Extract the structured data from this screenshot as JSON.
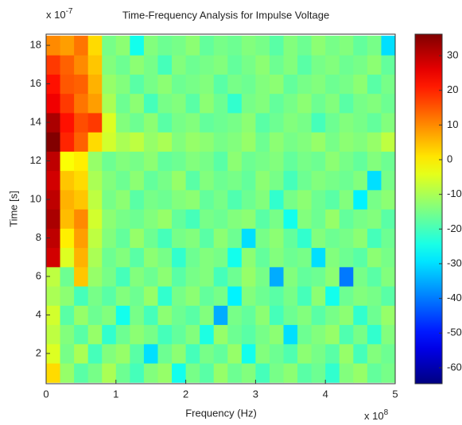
{
  "chart_data": {
    "type": "heatmap",
    "title": "Time-Frequency Analysis for Impulse Voltage",
    "xlabel": "Frequency (Hz)",
    "ylabel": "Time [s]",
    "x_multiplier": {
      "base": "x 10",
      "exponent": "8"
    },
    "y_multiplier": {
      "base": "x 10",
      "exponent": "-7"
    },
    "x": [
      0.1,
      0.3,
      0.5,
      0.7,
      0.9,
      1.1,
      1.3,
      1.5,
      1.7,
      1.9,
      2.1,
      2.3,
      2.5,
      2.7,
      2.9,
      3.1,
      3.3,
      3.5,
      3.7,
      3.9,
      4.1,
      4.3,
      4.5,
      4.7,
      4.9
    ],
    "y": [
      1,
      2,
      3,
      4,
      5,
      6,
      7,
      8,
      9,
      10,
      11,
      12,
      13,
      14,
      15,
      16,
      17,
      18
    ],
    "z": [
      [
        2,
        -12,
        -18,
        -15,
        -10,
        -16,
        -20,
        -14,
        -12,
        -25,
        -15,
        -18,
        -12,
        -16,
        -14,
        -20,
        -15,
        -13,
        -18,
        -16,
        -22,
        -14,
        -12,
        -17,
        -15
      ],
      [
        -5,
        -15,
        -10,
        -20,
        -14,
        -12,
        -18,
        -30,
        -16,
        -13,
        -20,
        -15,
        -17,
        -12,
        -25,
        -14,
        -16,
        -19,
        -13,
        -15,
        -18,
        -12,
        -20,
        -14,
        -16
      ],
      [
        -8,
        -14,
        -18,
        -12,
        -22,
        -16,
        -13,
        -15,
        -20,
        -17,
        -14,
        -24,
        -12,
        -16,
        -18,
        -15,
        -13,
        -30,
        -16,
        -14,
        -12,
        -19,
        -15,
        -22,
        -14
      ],
      [
        -6,
        -18,
        -12,
        -16,
        -14,
        -25,
        -15,
        -20,
        -13,
        -16,
        -18,
        -14,
        -35,
        -15,
        -17,
        -13,
        -20,
        -16,
        -14,
        -18,
        -15,
        -13,
        -22,
        -16,
        -12
      ],
      [
        -10,
        -13,
        -20,
        -15,
        -18,
        -14,
        -16,
        -12,
        -22,
        -15,
        -13,
        -17,
        -15,
        -28,
        -14,
        -16,
        -18,
        -15,
        -20,
        -13,
        -25,
        -16,
        -14,
        -15,
        -18
      ],
      [
        -8,
        -16,
        4,
        -12,
        -15,
        -20,
        -14,
        -16,
        -13,
        -18,
        -15,
        -14,
        -20,
        -16,
        -12,
        -15,
        -35,
        -14,
        -17,
        -16,
        -13,
        -40,
        -15,
        -18,
        -14
      ],
      [
        28,
        -5,
        6,
        -10,
        -16,
        -14,
        -18,
        -13,
        -15,
        -22,
        -16,
        -14,
        -15,
        -25,
        -13,
        -17,
        -14,
        -16,
        -15,
        -30,
        -14,
        -16,
        -18,
        -13,
        -15
      ],
      [
        30,
        0,
        8,
        -8,
        -14,
        -17,
        -12,
        -16,
        -20,
        -15,
        -14,
        -18,
        -13,
        -16,
        -30,
        -15,
        -13,
        -17,
        -22,
        -14,
        -16,
        -15,
        -13,
        -20,
        -16
      ],
      [
        32,
        5,
        10,
        -6,
        -13,
        -15,
        -16,
        -14,
        -12,
        -17,
        -20,
        -15,
        -16,
        -14,
        -13,
        -18,
        -15,
        -25,
        -14,
        -16,
        -12,
        -17,
        -15,
        -14,
        -18
      ],
      [
        30,
        6,
        4,
        -8,
        -15,
        -13,
        -18,
        -15,
        -16,
        -14,
        -13,
        -17,
        -15,
        -19,
        -16,
        -14,
        -22,
        -15,
        -13,
        -16,
        -18,
        -14,
        -28,
        -15,
        -13
      ],
      [
        28,
        4,
        2,
        -10,
        -14,
        -16,
        -13,
        -17,
        -15,
        -12,
        -18,
        -14,
        -16,
        -15,
        -17,
        -13,
        -15,
        -20,
        -16,
        -14,
        -15,
        -16,
        -14,
        -30,
        -15
      ],
      [
        30,
        -2,
        0,
        -12,
        -16,
        -14,
        -15,
        -13,
        -17,
        -16,
        -14,
        -15,
        -18,
        -13,
        -16,
        -15,
        -14,
        -17,
        -15,
        -16,
        -13,
        -15,
        -17,
        -14,
        -16
      ],
      [
        36,
        20,
        14,
        2,
        -6,
        -10,
        -8,
        -12,
        -10,
        -14,
        -12,
        -13,
        -15,
        -14,
        -12,
        -16,
        -13,
        -15,
        -14,
        -12,
        -15,
        -13,
        -14,
        -12,
        -8
      ],
      [
        32,
        22,
        16,
        18,
        -5,
        -14,
        -16,
        -13,
        -18,
        -15,
        -14,
        -17,
        -16,
        -15,
        -13,
        -18,
        -16,
        -14,
        -15,
        -20,
        -16,
        -14,
        -15,
        -17,
        -14
      ],
      [
        25,
        18,
        12,
        8,
        -10,
        -16,
        -13,
        -20,
        -15,
        -14,
        -18,
        -13,
        -16,
        -22,
        -15,
        -14,
        -17,
        -15,
        -13,
        -16,
        -14,
        -18,
        -15,
        -14,
        -16
      ],
      [
        22,
        15,
        14,
        6,
        -12,
        -14,
        -18,
        -15,
        -13,
        -16,
        -15,
        -14,
        -18,
        -15,
        -16,
        -14,
        -13,
        -17,
        -15,
        -14,
        -16,
        -15,
        -13,
        -18,
        -15
      ],
      [
        18,
        14,
        10,
        4,
        -14,
        -16,
        -13,
        -15,
        -20,
        -14,
        -16,
        -15,
        -14,
        -17,
        -15,
        -13,
        -16,
        -14,
        -18,
        -15,
        -14,
        -16,
        -15,
        -13,
        -17
      ],
      [
        10,
        8,
        12,
        2,
        -15,
        -13,
        -25,
        -14,
        -16,
        -15,
        -13,
        -17,
        -15,
        -16,
        -14,
        -15,
        -18,
        -14,
        -16,
        -13,
        -15,
        -14,
        -17,
        -15,
        -30
      ]
    ],
    "xlim": [
      0,
      5
    ],
    "xticks": [
      0,
      1,
      2,
      3,
      4,
      5
    ],
    "ylim": [
      0.43,
      18.58
    ],
    "yticks": [
      2,
      4,
      6,
      8,
      10,
      12,
      14,
      16,
      18
    ],
    "clim": [
      -64.6,
      36.2
    ],
    "cticks": [
      -60,
      -50,
      -40,
      -30,
      -20,
      -10,
      0,
      10,
      20,
      30
    ],
    "colormap": "jet"
  }
}
